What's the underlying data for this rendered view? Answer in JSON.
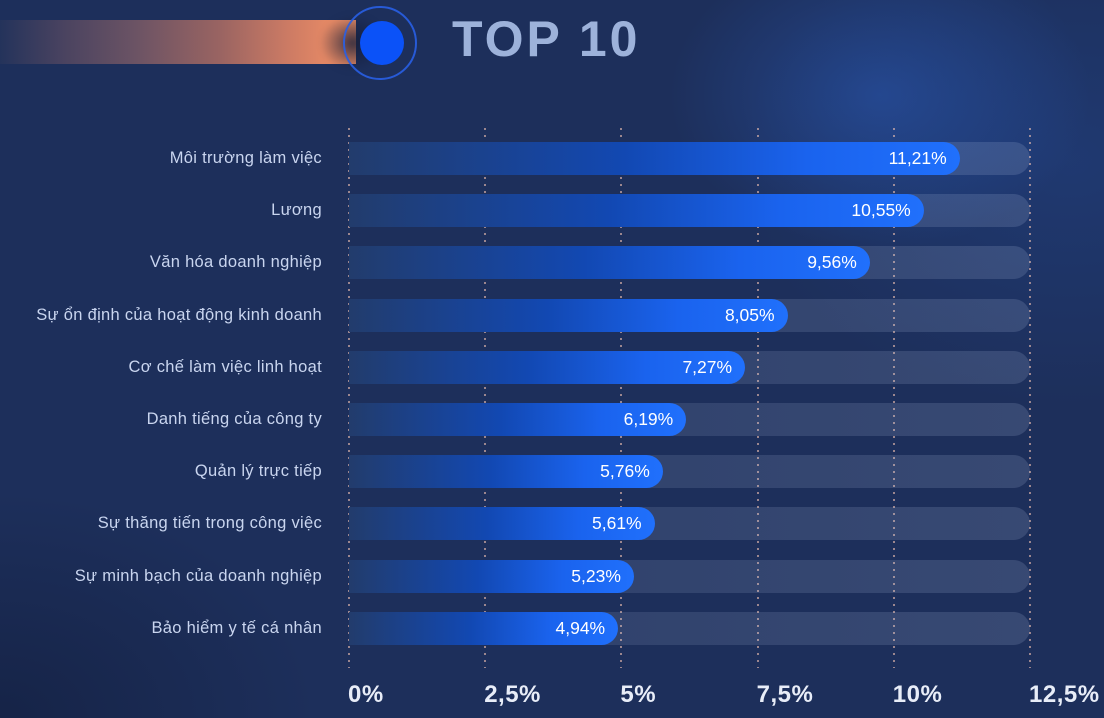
{
  "page": {
    "background_color": "#1d2f5b"
  },
  "header": {
    "title": "TOP 10",
    "title_color": "#9db2da",
    "accent_bar_color_end": "#ef8f66",
    "bullet_ring_color": "#295fe4",
    "bullet_dot_color": "#0b52f8"
  },
  "chart_data": {
    "type": "bar",
    "orientation": "horizontal",
    "title": "TOP 10",
    "categories": [
      "Môi trường làm việc",
      "Lương",
      "Văn hóa doanh nghiệp",
      "Sự ổn định của hoạt động kinh doanh",
      "Cơ chế làm việc linh hoạt",
      "Danh tiếng của công ty",
      "Quản lý trực tiếp",
      "Sự thăng tiến trong công việc",
      "Sự minh bạch của doanh nghiệp",
      "Bảo hiểm y tế cá nhân"
    ],
    "values": [
      11.21,
      10.55,
      9.56,
      8.05,
      7.27,
      6.19,
      5.76,
      5.61,
      5.23,
      4.94
    ],
    "value_labels": [
      "11,21%",
      "10,55%",
      "9,56%",
      "8,05%",
      "7,27%",
      "6,19%",
      "5,76%",
      "5,61%",
      "5,23%",
      "4,94%"
    ],
    "xlabel": "",
    "ylabel": "",
    "xlim": [
      0,
      12.5
    ],
    "x_ticks": [
      {
        "label": "0%",
        "value": 0
      },
      {
        "label": "2,5%",
        "value": 2.5
      },
      {
        "label": "5%",
        "value": 5
      },
      {
        "label": "7,5%",
        "value": 7.5
      },
      {
        "label": "10%",
        "value": 10
      },
      {
        "label": "12,5%",
        "value": 12.5
      }
    ],
    "grid": "dotted-vertical",
    "gridline_color": "rgba(240,193,177,0.6)",
    "bar_color_start": "#223c6c",
    "bar_color_end": "#2070fc",
    "track_color": "rgba(186,202,234,0.14)",
    "value_label_color": "#ffffff",
    "category_label_color": "#c9d5ef",
    "legend": null
  }
}
